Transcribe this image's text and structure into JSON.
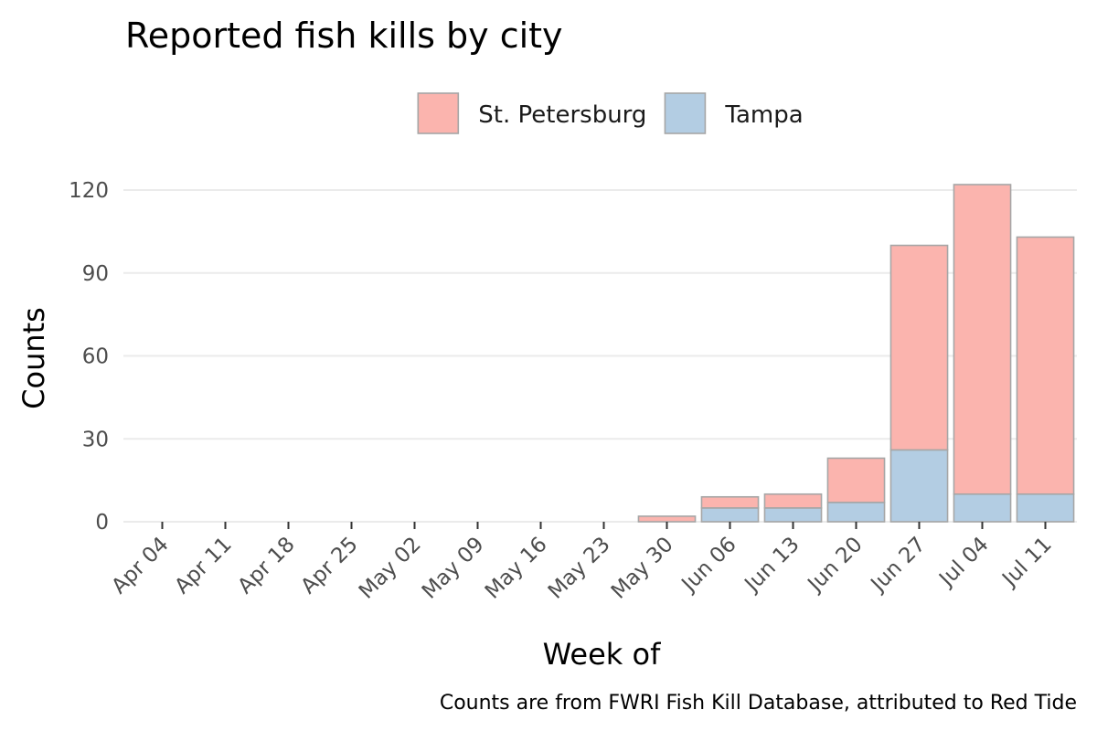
{
  "chart_data": {
    "type": "bar",
    "stacked": true,
    "title": "Reported fish kills by city",
    "xlabel": "Week of",
    "ylabel": "Counts",
    "caption": "Counts are from FWRI Fish Kill Database, attributed to Red Tide",
    "categories": [
      "Apr 04",
      "Apr 11",
      "Apr 18",
      "Apr 25",
      "May 02",
      "May 09",
      "May 16",
      "May 23",
      "May 30",
      "Jun 06",
      "Jun 13",
      "Jun 20",
      "Jun 27",
      "Jul 04",
      "Jul 11"
    ],
    "series": [
      {
        "name": "Tampa",
        "color": "#b3cde3",
        "values": [
          0,
          0,
          0,
          0,
          0,
          0,
          0,
          0,
          0,
          5,
          5,
          7,
          26,
          10,
          10
        ]
      },
      {
        "name": "St. Petersburg",
        "color": "#fbb4ae",
        "values": [
          0,
          0,
          0,
          0,
          0,
          0,
          0,
          0,
          2,
          4,
          5,
          16,
          74,
          112,
          93
        ]
      }
    ],
    "legend_order": [
      "St. Petersburg",
      "Tampa"
    ],
    "legend_position": "top",
    "ylim": [
      0,
      122
    ],
    "yticks": [
      0,
      30,
      60,
      90,
      120
    ],
    "grid": true
  }
}
